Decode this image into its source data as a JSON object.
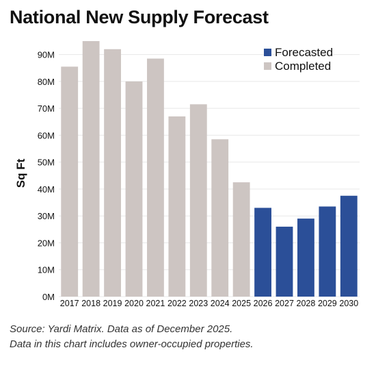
{
  "title": "National New Supply Forecast",
  "notes": {
    "source": "Source: Yardi Matrix. Data as of December 2025.",
    "note": "Data in this chart includes owner-occupied properties."
  },
  "colors": {
    "completed": "#cdc5c2",
    "forecasted": "#2b4f98",
    "grid": "#e8e8e8",
    "text": "#111111"
  },
  "chart_data": {
    "type": "bar",
    "title": "National New Supply Forecast",
    "ylabel": "Sq Ft",
    "xlabel": "",
    "ylim": [
      0,
      95
    ],
    "yunit": "M",
    "yticks": [
      "0M",
      "10M",
      "20M",
      "30M",
      "40M",
      "50M",
      "60M",
      "70M",
      "80M",
      "90M"
    ],
    "grid": true,
    "legend_position": "top-right",
    "categories": [
      "2017",
      "2018",
      "2019",
      "2020",
      "2021",
      "2022",
      "2023",
      "2024",
      "2025",
      "2026",
      "2027",
      "2028",
      "2029",
      "2030"
    ],
    "values": [
      85.5,
      95,
      92,
      80,
      88.5,
      67,
      71.5,
      58.5,
      42.5,
      33,
      26,
      29,
      33.5,
      37.5
    ],
    "status": [
      "Completed",
      "Completed",
      "Completed",
      "Completed",
      "Completed",
      "Completed",
      "Completed",
      "Completed",
      "Completed",
      "Forecasted",
      "Forecasted",
      "Forecasted",
      "Forecasted",
      "Forecasted"
    ],
    "legend": [
      {
        "label": "Forecasted",
        "color": "#2b4f98"
      },
      {
        "label": "Completed",
        "color": "#cdc5c2"
      }
    ]
  }
}
